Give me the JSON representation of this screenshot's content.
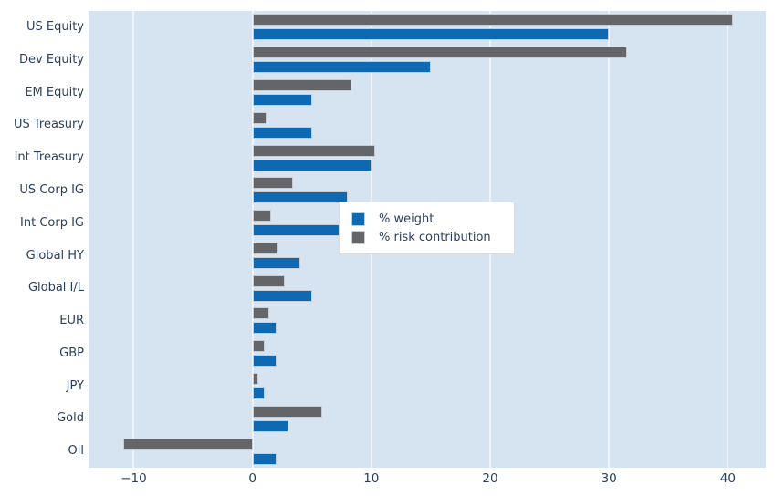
{
  "chart_data": {
    "type": "bar",
    "orientation": "horizontal",
    "title": "",
    "xlabel": "",
    "ylabel": "",
    "grid": true,
    "legend_position": "center-right",
    "categories": [
      "US Equity",
      "Dev Equity",
      "EM Equity",
      "US Treasury",
      "Int Treasury",
      "US Corp IG",
      "Int Corp IG",
      "Global HY",
      "Global I/L",
      "EUR",
      "GBP",
      "JPY",
      "Gold",
      "Oil"
    ],
    "series": [
      {
        "name": "% weight",
        "color": "#0e68b2",
        "values": [
          30,
          15,
          5,
          5,
          10,
          8,
          8,
          4,
          5,
          2,
          2,
          1,
          3,
          2
        ]
      },
      {
        "name": "% risk contribution",
        "color": "#636569",
        "values": [
          40.4,
          31.5,
          8.3,
          1.2,
          10.3,
          3.4,
          1.6,
          2.1,
          2.7,
          1.4,
          1.0,
          0.5,
          5.9,
          -10.9
        ]
      }
    ],
    "x_ticks": [
      -10,
      0,
      10,
      20,
      30,
      40
    ],
    "x_tick_labels": [
      "−10",
      "0",
      "10",
      "20",
      "30",
      "40"
    ],
    "xlim": [
      -13.8,
      43.2
    ]
  },
  "legend": {
    "items": [
      {
        "label": "% weight",
        "color": "#0e68b2"
      },
      {
        "label": "% risk contribution",
        "color": "#636569"
      }
    ]
  },
  "style": {
    "plot_background": "#d6e4f1",
    "gridline_color": "#eef4fa",
    "text_color": "#2a3f5f",
    "bar_edge_color": "#c9cdd2"
  }
}
